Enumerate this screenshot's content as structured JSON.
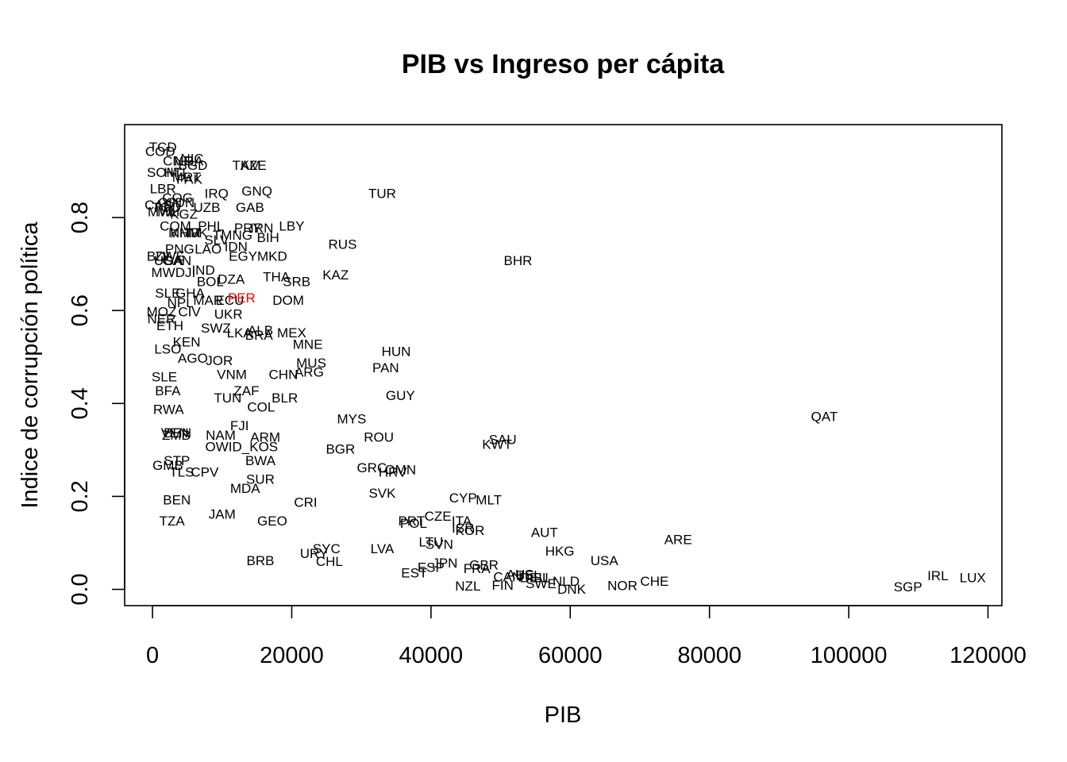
{
  "chart_data": {
    "type": "scatter",
    "title": "PIB vs Ingreso per cápita",
    "xlabel": "PIB",
    "ylabel": "Indice de corrupción política",
    "xlim": [
      -4000,
      122000
    ],
    "ylim": [
      -0.035,
      1.0
    ],
    "xticks": [
      0,
      20000,
      40000,
      60000,
      80000,
      100000,
      120000
    ],
    "yticks": [
      0.0,
      0.2,
      0.4,
      0.6,
      0.8
    ],
    "grid": false,
    "legend": "none",
    "point_style": "text labels (country codes)",
    "default_color": "#000000",
    "highlight_color": "#ff0000",
    "highlight_label": "PER",
    "points": [
      {
        "label": "TCD",
        "x": 1500,
        "y": 0.95
      },
      {
        "label": "COD",
        "x": 1100,
        "y": 0.94
      },
      {
        "label": "CMR",
        "x": 3700,
        "y": 0.92
      },
      {
        "label": "NIC",
        "x": 5700,
        "y": 0.925
      },
      {
        "label": "NGA",
        "x": 5200,
        "y": 0.92
      },
      {
        "label": "BGD",
        "x": 5800,
        "y": 0.91
      },
      {
        "label": "TKM",
        "x": 13500,
        "y": 0.91
      },
      {
        "label": "AZE",
        "x": 14500,
        "y": 0.91
      },
      {
        "label": "SOM",
        "x": 1400,
        "y": 0.895
      },
      {
        "label": "HTI",
        "x": 3200,
        "y": 0.895
      },
      {
        "label": "PAK",
        "x": 5300,
        "y": 0.88
      },
      {
        "label": "MRT",
        "x": 4900,
        "y": 0.885
      },
      {
        "label": "LBR",
        "x": 1500,
        "y": 0.86
      },
      {
        "label": "IRQ",
        "x": 9200,
        "y": 0.85
      },
      {
        "label": "GNQ",
        "x": 15000,
        "y": 0.855
      },
      {
        "label": "COG",
        "x": 3600,
        "y": 0.84
      },
      {
        "label": "GIN",
        "x": 2500,
        "y": 0.83
      },
      {
        "label": "SDN",
        "x": 4000,
        "y": 0.83
      },
      {
        "label": "UZB",
        "x": 7800,
        "y": 0.82
      },
      {
        "label": "GAB",
        "x": 14000,
        "y": 0.82
      },
      {
        "label": "CAF",
        "x": 800,
        "y": 0.825
      },
      {
        "label": "TGO",
        "x": 2000,
        "y": 0.82
      },
      {
        "label": "MLI",
        "x": 2300,
        "y": 0.81
      },
      {
        "label": "MWI",
        "x": 1300,
        "y": 0.81
      },
      {
        "label": "KGZ",
        "x": 4500,
        "y": 0.805
      },
      {
        "label": "COM",
        "x": 3300,
        "y": 0.78
      },
      {
        "label": "PHL",
        "x": 8400,
        "y": 0.78
      },
      {
        "label": "PRY",
        "x": 13700,
        "y": 0.775
      },
      {
        "label": "IRN",
        "x": 15700,
        "y": 0.775
      },
      {
        "label": "LBY",
        "x": 20000,
        "y": 0.78
      },
      {
        "label": "MMR",
        "x": 4600,
        "y": 0.765
      },
      {
        "label": "KHM",
        "x": 4700,
        "y": 0.765
      },
      {
        "label": "TJK",
        "x": 6200,
        "y": 0.765
      },
      {
        "label": "SLV",
        "x": 9200,
        "y": 0.75
      },
      {
        "label": "TMNG",
        "x": 11500,
        "y": 0.76
      },
      {
        "label": "BIH",
        "x": 16600,
        "y": 0.755
      },
      {
        "label": "RUS",
        "x": 27300,
        "y": 0.74
      },
      {
        "label": "PNG",
        "x": 3900,
        "y": 0.73
      },
      {
        "label": "LAO",
        "x": 8000,
        "y": 0.73
      },
      {
        "label": "IDN",
        "x": 12000,
        "y": 0.735
      },
      {
        "label": "EGY",
        "x": 13000,
        "y": 0.715
      },
      {
        "label": "MKD",
        "x": 17200,
        "y": 0.715
      },
      {
        "label": "BDI",
        "x": 800,
        "y": 0.715
      },
      {
        "label": "ZWE",
        "x": 2500,
        "y": 0.715
      },
      {
        "label": "UGA",
        "x": 2300,
        "y": 0.705
      },
      {
        "label": "GAN",
        "x": 3500,
        "y": 0.705
      },
      {
        "label": "BHR",
        "x": 52500,
        "y": 0.705
      },
      {
        "label": "MWDJI",
        "x": 3000,
        "y": 0.68
      },
      {
        "label": "IND",
        "x": 7300,
        "y": 0.685
      },
      {
        "label": "BOL",
        "x": 8300,
        "y": 0.66
      },
      {
        "label": "DZA",
        "x": 11300,
        "y": 0.665
      },
      {
        "label": "THA",
        "x": 17800,
        "y": 0.67
      },
      {
        "label": "SRB",
        "x": 20700,
        "y": 0.66
      },
      {
        "label": "KAZ",
        "x": 26300,
        "y": 0.675
      },
      {
        "label": "SLE",
        "x": 2200,
        "y": 0.635
      },
      {
        "label": "GHA",
        "x": 5400,
        "y": 0.635
      },
      {
        "label": "NPL",
        "x": 4000,
        "y": 0.615
      },
      {
        "label": "MAR",
        "x": 8000,
        "y": 0.62
      },
      {
        "label": "ECU",
        "x": 11100,
        "y": 0.62
      },
      {
        "label": "PER",
        "x": 12800,
        "y": 0.625
      },
      {
        "label": "DOM",
        "x": 19500,
        "y": 0.62
      },
      {
        "label": "MOZ",
        "x": 1300,
        "y": 0.595
      },
      {
        "label": "CIV",
        "x": 5300,
        "y": 0.595
      },
      {
        "label": "UKR",
        "x": 10900,
        "y": 0.59
      },
      {
        "label": "NER",
        "x": 1300,
        "y": 0.58
      },
      {
        "label": "ETH",
        "x": 2500,
        "y": 0.565
      },
      {
        "label": "SWZ",
        "x": 9100,
        "y": 0.56
      },
      {
        "label": "LKA",
        "x": 12500,
        "y": 0.55
      },
      {
        "label": "ALB",
        "x": 15500,
        "y": 0.555
      },
      {
        "label": "BRA",
        "x": 15300,
        "y": 0.545
      },
      {
        "label": "MEX",
        "x": 20000,
        "y": 0.55
      },
      {
        "label": "MNE",
        "x": 22300,
        "y": 0.525
      },
      {
        "label": "KEN",
        "x": 4900,
        "y": 0.53
      },
      {
        "label": "LSO",
        "x": 2200,
        "y": 0.515
      },
      {
        "label": "HUN",
        "x": 35000,
        "y": 0.51
      },
      {
        "label": "AGO",
        "x": 5800,
        "y": 0.495
      },
      {
        "label": "JOR",
        "x": 9600,
        "y": 0.49
      },
      {
        "label": "MUS",
        "x": 22800,
        "y": 0.485
      },
      {
        "label": "PAN",
        "x": 33500,
        "y": 0.475
      },
      {
        "label": "VNM",
        "x": 11400,
        "y": 0.46
      },
      {
        "label": "CHN",
        "x": 18800,
        "y": 0.46
      },
      {
        "label": "ARG",
        "x": 22500,
        "y": 0.465
      },
      {
        "label": "SLE",
        "x": 1700,
        "y": 0.455
      },
      {
        "label": "BFA",
        "x": 2200,
        "y": 0.425
      },
      {
        "label": "ZAF",
        "x": 13500,
        "y": 0.425
      },
      {
        "label": "TUN",
        "x": 10800,
        "y": 0.41
      },
      {
        "label": "BLR",
        "x": 19000,
        "y": 0.41
      },
      {
        "label": "GUY",
        "x": 35600,
        "y": 0.415
      },
      {
        "label": "COL",
        "x": 15600,
        "y": 0.39
      },
      {
        "label": "RWA",
        "x": 2300,
        "y": 0.385
      },
      {
        "label": "MYS",
        "x": 28600,
        "y": 0.365
      },
      {
        "label": "QAT",
        "x": 96500,
        "y": 0.37
      },
      {
        "label": "FJI",
        "x": 12500,
        "y": 0.35
      },
      {
        "label": "VEN",
        "x": 3200,
        "y": 0.335
      },
      {
        "label": "BEN",
        "x": 3600,
        "y": 0.335
      },
      {
        "label": "ZMB",
        "x": 3400,
        "y": 0.33
      },
      {
        "label": "NAM",
        "x": 9800,
        "y": 0.33
      },
      {
        "label": "ARM",
        "x": 16200,
        "y": 0.325
      },
      {
        "label": "ROU",
        "x": 32500,
        "y": 0.325
      },
      {
        "label": "SAU",
        "x": 50300,
        "y": 0.32
      },
      {
        "label": "KWT",
        "x": 49500,
        "y": 0.31
      },
      {
        "label": "OWID_KOS",
        "x": 12800,
        "y": 0.305
      },
      {
        "label": "BGR",
        "x": 27000,
        "y": 0.3
      },
      {
        "label": "BWA",
        "x": 15500,
        "y": 0.275
      },
      {
        "label": "STP",
        "x": 3500,
        "y": 0.275
      },
      {
        "label": "GMB",
        "x": 2200,
        "y": 0.265
      },
      {
        "label": "TLS",
        "x": 4200,
        "y": 0.25
      },
      {
        "label": "CPV",
        "x": 7500,
        "y": 0.25
      },
      {
        "label": "GRC",
        "x": 31500,
        "y": 0.26
      },
      {
        "label": "HRV",
        "x": 34500,
        "y": 0.25
      },
      {
        "label": "OMN",
        "x": 35600,
        "y": 0.255
      },
      {
        "label": "SUR",
        "x": 15500,
        "y": 0.235
      },
      {
        "label": "MDA",
        "x": 13300,
        "y": 0.215
      },
      {
        "label": "SVK",
        "x": 33000,
        "y": 0.205
      },
      {
        "label": "CYP",
        "x": 44600,
        "y": 0.195
      },
      {
        "label": "MLT",
        "x": 48300,
        "y": 0.19
      },
      {
        "label": "BEN",
        "x": 3500,
        "y": 0.19
      },
      {
        "label": "CRI",
        "x": 22000,
        "y": 0.185
      },
      {
        "label": "JAM",
        "x": 10000,
        "y": 0.16
      },
      {
        "label": "CZE",
        "x": 41000,
        "y": 0.155
      },
      {
        "label": "TZA",
        "x": 2800,
        "y": 0.145
      },
      {
        "label": "GEO",
        "x": 17200,
        "y": 0.145
      },
      {
        "label": "PRT",
        "x": 37200,
        "y": 0.145
      },
      {
        "label": "POL",
        "x": 37500,
        "y": 0.14
      },
      {
        "label": "ITA",
        "x": 44400,
        "y": 0.145
      },
      {
        "label": "ISR",
        "x": 44600,
        "y": 0.13
      },
      {
        "label": "KOR",
        "x": 45600,
        "y": 0.125
      },
      {
        "label": "AUT",
        "x": 56300,
        "y": 0.12
      },
      {
        "label": "ARE",
        "x": 75500,
        "y": 0.105
      },
      {
        "label": "LTU",
        "x": 40000,
        "y": 0.1
      },
      {
        "label": "SVN",
        "x": 41200,
        "y": 0.095
      },
      {
        "label": "TUR",
        "x": 33000,
        "y": 0.85
      },
      {
        "label": "LVA",
        "x": 33000,
        "y": 0.085
      },
      {
        "label": "URY",
        "x": 23200,
        "y": 0.075
      },
      {
        "label": "SYC",
        "x": 25000,
        "y": 0.085
      },
      {
        "label": "HKG",
        "x": 58500,
        "y": 0.08
      },
      {
        "label": "BRB",
        "x": 15500,
        "y": 0.06
      },
      {
        "label": "CHL",
        "x": 25400,
        "y": 0.058
      },
      {
        "label": "USA",
        "x": 64900,
        "y": 0.06
      },
      {
        "label": "JPN",
        "x": 42000,
        "y": 0.055
      },
      {
        "label": "ESP",
        "x": 40000,
        "y": 0.045
      },
      {
        "label": "GBR",
        "x": 47600,
        "y": 0.05
      },
      {
        "label": "FRA",
        "x": 46600,
        "y": 0.043
      },
      {
        "label": "EST",
        "x": 37600,
        "y": 0.033
      },
      {
        "label": "CAN",
        "x": 51000,
        "y": 0.025
      },
      {
        "label": "AUS",
        "x": 52800,
        "y": 0.03
      },
      {
        "label": "BEL",
        "x": 54000,
        "y": 0.028
      },
      {
        "label": "ISL",
        "x": 55600,
        "y": 0.023
      },
      {
        "label": "NLD",
        "x": 59400,
        "y": 0.015
      },
      {
        "label": "DEU",
        "x": 54800,
        "y": 0.023
      },
      {
        "label": "SWE",
        "x": 55800,
        "y": 0.01
      },
      {
        "label": "FIN",
        "x": 50300,
        "y": 0.007
      },
      {
        "label": "NZL",
        "x": 45300,
        "y": 0.005
      },
      {
        "label": "DNK",
        "x": 60200,
        "y": -0.002
      },
      {
        "label": "NOR",
        "x": 67500,
        "y": 0.006
      },
      {
        "label": "CHE",
        "x": 72100,
        "y": 0.015
      },
      {
        "label": "SGP",
        "x": 108500,
        "y": 0.003
      },
      {
        "label": "IRL",
        "x": 112800,
        "y": 0.027
      },
      {
        "label": "LUX",
        "x": 117800,
        "y": 0.023
      }
    ]
  }
}
